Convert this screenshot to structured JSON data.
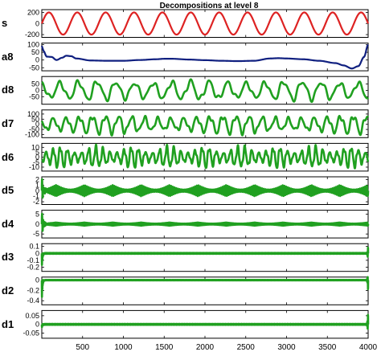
{
  "chart_data": {
    "type": "line",
    "title": "Decompositions at level 8",
    "x_tick_labels": [
      "500",
      "1000",
      "1500",
      "2000",
      "2500",
      "3000",
      "3500",
      "4000"
    ],
    "xlim": [
      0,
      4000
    ],
    "panels": [
      {
        "name": "s",
        "color": "#dd2222",
        "ylim": [
          -250,
          250
        ],
        "yticks": [
          "200",
          "0",
          "-200"
        ],
        "signal": {
          "kind": "sine",
          "amplitude": 200,
          "cycles": 11.5,
          "samples": 800
        }
      },
      {
        "name": "a8",
        "color": "#102080",
        "ylim": [
          -70,
          110
        ],
        "yticks": [
          "100",
          "50",
          "0",
          "-50"
        ],
        "signal": {
          "kind": "approx",
          "samples": 400,
          "points": [
            [
              0,
              92
            ],
            [
              20,
              60
            ],
            [
              60,
              22
            ],
            [
              120,
              20
            ],
            [
              180,
              0
            ],
            [
              250,
              15
            ],
            [
              300,
              28
            ],
            [
              360,
              25
            ],
            [
              420,
              10
            ],
            [
              600,
              -3
            ],
            [
              800,
              -5
            ],
            [
              1000,
              -5
            ],
            [
              1200,
              0
            ],
            [
              1400,
              5
            ],
            [
              1500,
              8
            ],
            [
              1600,
              8
            ],
            [
              1800,
              3
            ],
            [
              2000,
              -1
            ],
            [
              2200,
              -5
            ],
            [
              2400,
              -7
            ],
            [
              2600,
              -5
            ],
            [
              2800,
              10
            ],
            [
              2900,
              12
            ],
            [
              3000,
              10
            ],
            [
              3200,
              5
            ],
            [
              3400,
              -5
            ],
            [
              3600,
              -20
            ],
            [
              3700,
              -35
            ],
            [
              3800,
              -55
            ],
            [
              3880,
              -40
            ],
            [
              3950,
              20
            ],
            [
              4000,
              100
            ]
          ]
        }
      },
      {
        "name": "d8",
        "color": "#20a020",
        "ylim": [
          -110,
          110
        ],
        "yticks": [
          "50",
          "0",
          "-50"
        ],
        "signal": {
          "kind": "bandpass",
          "amplitude": 80,
          "cycles": 17.5,
          "mod_cycles": 3.2,
          "mod_depth": 0.2,
          "harmonic": 0.25,
          "samples": 900,
          "seed": 11
        }
      },
      {
        "name": "d7",
        "color": "#20a020",
        "ylim": [
          -130,
          140
        ],
        "yticks": [
          "100",
          "50",
          "0",
          "-50",
          "-100"
        ],
        "signal": {
          "kind": "bandpass",
          "amplitude": 95,
          "cycles": 25,
          "mod_cycles": 2.6,
          "mod_depth": 0.35,
          "harmonic": 0.3,
          "samples": 1100,
          "seed": 23
        }
      },
      {
        "name": "d6",
        "color": "#20a020",
        "ylim": [
          -14,
          14
        ],
        "yticks": [
          "10",
          "5",
          "0",
          "-5",
          "-10"
        ],
        "signal": {
          "kind": "bandpass",
          "amplitude": 11,
          "cycles": 46,
          "mod_cycles": 9,
          "mod_depth": 0.55,
          "harmonic": 0.2,
          "samples": 1800,
          "seed": 37
        }
      },
      {
        "name": "d5",
        "color": "#20a020",
        "ylim": [
          -2.5,
          2.5
        ],
        "yticks": [
          "2",
          "1",
          "0",
          "-1",
          "-2"
        ],
        "signal": {
          "kind": "burst",
          "amplitude": 1.0,
          "cycles": 190,
          "mod_cycles": 11.5,
          "mod_depth": 0.8,
          "transient": 2.3,
          "samples": 4000
        }
      },
      {
        "name": "d4",
        "color": "#20a020",
        "ylim": [
          -7,
          7
        ],
        "yticks": [
          "5",
          "0",
          "-5"
        ],
        "signal": {
          "kind": "burst",
          "amplitude": 0.8,
          "cycles": 380,
          "mod_cycles": 11.5,
          "mod_depth": 0.7,
          "transient": 6,
          "samples": 4000
        }
      },
      {
        "name": "d3",
        "color": "#20a020",
        "ylim": [
          -0.26,
          0.14
        ],
        "yticks": [
          "0.1",
          "0",
          "-0.1",
          "-0.2"
        ],
        "signal": {
          "kind": "flat",
          "amplitude": 0.006,
          "cycles": 900,
          "transient": 0.22,
          "end_spike": 0.12,
          "samples": 4000
        }
      },
      {
        "name": "d2",
        "color": "#20a020",
        "ylim": [
          -0.48,
          0.06
        ],
        "yticks": [
          "0",
          "-0.2",
          "-0.4"
        ],
        "signal": {
          "kind": "flat",
          "amplitude": 0.004,
          "cycles": 1500,
          "transient": 0.42,
          "end_spike": -0.25,
          "samples": 4000
        }
      },
      {
        "name": "d1",
        "color": "#20a020",
        "ylim": [
          -0.08,
          0.08
        ],
        "yticks": [
          "0.05",
          "0",
          "-0.05"
        ],
        "signal": {
          "kind": "flat",
          "amplitude": 0.003,
          "cycles": 1900,
          "transient": 0.02,
          "end_spike": 0.075,
          "samples": 4000
        }
      }
    ]
  }
}
